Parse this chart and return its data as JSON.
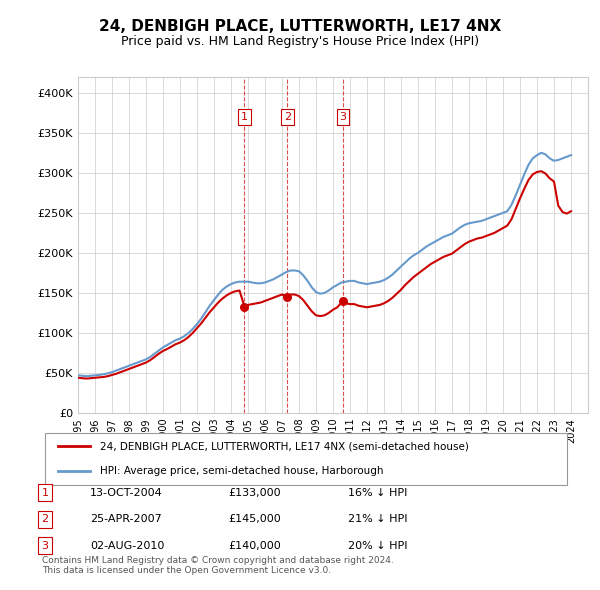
{
  "title": "24, DENBIGH PLACE, LUTTERWORTH, LE17 4NX",
  "subtitle": "Price paid vs. HM Land Registry's House Price Index (HPI)",
  "ylabel_ticks": [
    "£0",
    "£50K",
    "£100K",
    "£150K",
    "£200K",
    "£250K",
    "£300K",
    "£350K",
    "£400K"
  ],
  "ylim": [
    0,
    420000
  ],
  "xlim_start": 1995.0,
  "xlim_end": 2025.0,
  "hpi_color": "#6699cc",
  "price_color": "#cc0000",
  "vline_color": "#cc0000",
  "grid_color": "#cccccc",
  "background_color": "#ffffff",
  "legend_line1": "24, DENBIGH PLACE, LUTTERWORTH, LE17 4NX (semi-detached house)",
  "legend_line2": "HPI: Average price, semi-detached house, Harborough",
  "transactions": [
    {
      "num": 1,
      "date": "13-OCT-2004",
      "price": "£133,000",
      "pct": "16% ↓ HPI",
      "year": 2004.79
    },
    {
      "num": 2,
      "date": "25-APR-2007",
      "price": "£145,000",
      "pct": "21% ↓ HPI",
      "year": 2007.32
    },
    {
      "num": 3,
      "date": "02-AUG-2010",
      "price": "£140,000",
      "pct": "20% ↓ HPI",
      "year": 2010.59
    }
  ],
  "footer": "Contains HM Land Registry data © Crown copyright and database right 2024.\nThis data is licensed under the Open Government Licence v3.0.",
  "hpi_data_x": [
    1995.0,
    1995.25,
    1995.5,
    1995.75,
    1996.0,
    1996.25,
    1996.5,
    1996.75,
    1997.0,
    1997.25,
    1997.5,
    1997.75,
    1998.0,
    1998.25,
    1998.5,
    1998.75,
    1999.0,
    1999.25,
    1999.5,
    1999.75,
    2000.0,
    2000.25,
    2000.5,
    2000.75,
    2001.0,
    2001.25,
    2001.5,
    2001.75,
    2002.0,
    2002.25,
    2002.5,
    2002.75,
    2003.0,
    2003.25,
    2003.5,
    2003.75,
    2004.0,
    2004.25,
    2004.5,
    2004.75,
    2005.0,
    2005.25,
    2005.5,
    2005.75,
    2006.0,
    2006.25,
    2006.5,
    2006.75,
    2007.0,
    2007.25,
    2007.5,
    2007.75,
    2008.0,
    2008.25,
    2008.5,
    2008.75,
    2009.0,
    2009.25,
    2009.5,
    2009.75,
    2010.0,
    2010.25,
    2010.5,
    2010.75,
    2011.0,
    2011.25,
    2011.5,
    2011.75,
    2012.0,
    2012.25,
    2012.5,
    2012.75,
    2013.0,
    2013.25,
    2013.5,
    2013.75,
    2014.0,
    2014.25,
    2014.5,
    2014.75,
    2015.0,
    2015.25,
    2015.5,
    2015.75,
    2016.0,
    2016.25,
    2016.5,
    2016.75,
    2017.0,
    2017.25,
    2017.5,
    2017.75,
    2018.0,
    2018.25,
    2018.5,
    2018.75,
    2019.0,
    2019.25,
    2019.5,
    2019.75,
    2020.0,
    2020.25,
    2020.5,
    2020.75,
    2021.0,
    2021.25,
    2021.5,
    2021.75,
    2022.0,
    2022.25,
    2022.5,
    2022.75,
    2023.0,
    2023.25,
    2023.5,
    2023.75,
    2024.0
  ],
  "hpi_data_y": [
    47000,
    46500,
    46000,
    46500,
    47000,
    47500,
    48500,
    49500,
    51000,
    53000,
    55000,
    57000,
    59000,
    61000,
    63000,
    65000,
    67000,
    70000,
    74000,
    78000,
    82000,
    85000,
    88000,
    91000,
    93000,
    96000,
    100000,
    105000,
    111000,
    118000,
    126000,
    134000,
    141000,
    148000,
    154000,
    158000,
    161000,
    163000,
    164000,
    164000,
    164000,
    163000,
    162000,
    162000,
    163000,
    165000,
    167000,
    170000,
    173000,
    176000,
    178000,
    178000,
    177000,
    172000,
    165000,
    157000,
    151000,
    149000,
    150000,
    153000,
    157000,
    160000,
    163000,
    164000,
    165000,
    165000,
    163000,
    162000,
    161000,
    162000,
    163000,
    164000,
    166000,
    169000,
    173000,
    178000,
    183000,
    188000,
    193000,
    197000,
    200000,
    204000,
    208000,
    211000,
    214000,
    217000,
    220000,
    222000,
    224000,
    228000,
    232000,
    235000,
    237000,
    238000,
    239000,
    240000,
    242000,
    244000,
    246000,
    248000,
    250000,
    252000,
    260000,
    272000,
    285000,
    298000,
    310000,
    318000,
    322000,
    325000,
    323000,
    318000,
    315000,
    316000,
    318000,
    320000,
    322000
  ],
  "price_data_x": [
    1995.0,
    1995.25,
    1995.5,
    1995.75,
    1996.0,
    1996.25,
    1996.5,
    1996.75,
    1997.0,
    1997.25,
    1997.5,
    1997.75,
    1998.0,
    1998.25,
    1998.5,
    1998.75,
    1999.0,
    1999.25,
    1999.5,
    1999.75,
    2000.0,
    2000.25,
    2000.5,
    2000.75,
    2001.0,
    2001.25,
    2001.5,
    2001.75,
    2002.0,
    2002.25,
    2002.5,
    2002.75,
    2003.0,
    2003.25,
    2003.5,
    2003.75,
    2004.0,
    2004.25,
    2004.5,
    2004.79,
    2005.0,
    2005.25,
    2005.5,
    2005.75,
    2006.0,
    2006.25,
    2006.5,
    2006.75,
    2007.0,
    2007.32,
    2007.5,
    2007.75,
    2008.0,
    2008.25,
    2008.5,
    2008.75,
    2009.0,
    2009.25,
    2009.5,
    2009.75,
    2010.0,
    2010.25,
    2010.59,
    2010.75,
    2011.0,
    2011.25,
    2011.5,
    2011.75,
    2012.0,
    2012.25,
    2012.5,
    2012.75,
    2013.0,
    2013.25,
    2013.5,
    2013.75,
    2014.0,
    2014.25,
    2014.5,
    2014.75,
    2015.0,
    2015.25,
    2015.5,
    2015.75,
    2016.0,
    2016.25,
    2016.5,
    2016.75,
    2017.0,
    2017.25,
    2017.5,
    2017.75,
    2018.0,
    2018.25,
    2018.5,
    2018.75,
    2019.0,
    2019.25,
    2019.5,
    2019.75,
    2020.0,
    2020.25,
    2020.5,
    2020.75,
    2021.0,
    2021.25,
    2021.5,
    2021.75,
    2022.0,
    2022.25,
    2022.5,
    2022.75,
    2023.0,
    2023.25,
    2023.5,
    2023.75,
    2024.0
  ],
  "price_data_y": [
    44000,
    43500,
    43000,
    43500,
    44000,
    44500,
    45000,
    46000,
    47500,
    49000,
    51000,
    53000,
    55000,
    57000,
    59000,
    61000,
    63000,
    66000,
    70000,
    74000,
    77500,
    80000,
    83000,
    86000,
    88000,
    91000,
    95000,
    100000,
    106000,
    112000,
    119000,
    126000,
    132000,
    138000,
    143000,
    147000,
    150000,
    152000,
    153000,
    133000,
    135000,
    136000,
    137000,
    138000,
    140000,
    142000,
    144000,
    146000,
    148000,
    145000,
    148000,
    148000,
    146000,
    141000,
    134000,
    127000,
    122000,
    121000,
    122000,
    125000,
    129000,
    132000,
    140000,
    137000,
    136000,
    136000,
    134000,
    133000,
    132000,
    133000,
    134000,
    135000,
    137000,
    140000,
    144000,
    149000,
    154000,
    160000,
    165000,
    170000,
    174000,
    178000,
    182000,
    186000,
    189000,
    192000,
    195000,
    197000,
    199000,
    203000,
    207000,
    211000,
    214000,
    216000,
    218000,
    219000,
    221000,
    223000,
    225000,
    228000,
    231000,
    234000,
    242000,
    255000,
    268000,
    280000,
    291000,
    298000,
    301000,
    302000,
    299000,
    293000,
    289000,
    259000,
    251000,
    249000,
    252000
  ]
}
